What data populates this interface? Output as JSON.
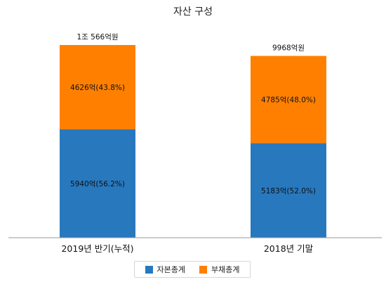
{
  "chart_data": {
    "type": "bar",
    "stacked": true,
    "title": "자산 구성",
    "categories": [
      "2019년 반기(누적)",
      "2018년 기말"
    ],
    "series": [
      {
        "name": "자본총계",
        "color": "#2878be",
        "values": [
          5940,
          5183
        ],
        "labels": [
          "5940억(56.2%)",
          "5183억(52.0%)"
        ]
      },
      {
        "name": "부채총계",
        "color": "#ff8000",
        "values": [
          4626,
          4785
        ],
        "labels": [
          "4626억(43.8%)",
          "4785억(48.0%)"
        ]
      }
    ],
    "totals": [
      10566,
      9968
    ],
    "total_labels": [
      "1조 566억원",
      "9968억원"
    ],
    "ylim": [
      0,
      10566
    ],
    "grid": false,
    "legend_position": "bottom"
  }
}
